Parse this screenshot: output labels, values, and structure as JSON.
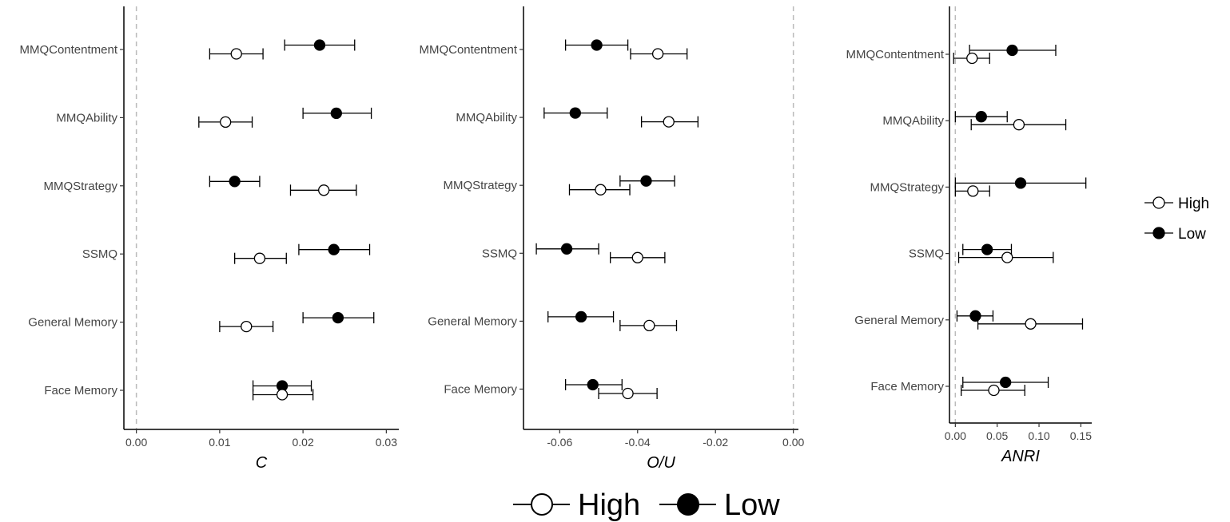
{
  "colors": {
    "high_fill": "#ffffff",
    "low_fill": "#000000",
    "stroke": "#000000",
    "reference_line": "#bbbbbb"
  },
  "legends": [
    {
      "placement": "right",
      "entries": [
        "High",
        "Low"
      ]
    },
    {
      "placement": "bottom",
      "entries": [
        "High",
        "Low"
      ]
    }
  ],
  "chart_data": [
    {
      "type": "scatter",
      "orientation": "horizontal",
      "xlabel": "C",
      "xlim": [
        -0.0015,
        0.0315
      ],
      "xticks": [
        0.0,
        0.01,
        0.02,
        0.03
      ],
      "xtick_labels": [
        "0.00",
        "0.01",
        "0.02",
        "0.03"
      ],
      "reference_line_x": 0,
      "grid": false,
      "categories": [
        "MMQContentment",
        "MMQAbility",
        "MMQStrategy",
        "SSMQ",
        "General Memory",
        "Face Memory"
      ],
      "series": [
        {
          "name": "High",
          "values": [
            0.012,
            0.0107,
            0.0225,
            0.0148,
            0.0132,
            0.0175
          ],
          "lower": [
            0.0088,
            0.0075,
            0.0185,
            0.0118,
            0.01,
            0.014
          ],
          "upper": [
            0.0152,
            0.0139,
            0.0264,
            0.018,
            0.0164,
            0.0212
          ]
        },
        {
          "name": "Low",
          "values": [
            0.022,
            0.024,
            0.0118,
            0.0237,
            0.0242,
            0.0175
          ],
          "lower": [
            0.0178,
            0.02,
            0.0088,
            0.0195,
            0.02,
            0.014
          ],
          "upper": [
            0.0262,
            0.0282,
            0.0148,
            0.028,
            0.0285,
            0.021
          ]
        }
      ]
    },
    {
      "type": "scatter",
      "orientation": "horizontal",
      "xlabel": "O/U",
      "xlim": [
        -0.0693,
        0.0013
      ],
      "xticks": [
        -0.06,
        -0.04,
        -0.02,
        0.0
      ],
      "xtick_labels": [
        "-0.06",
        "-0.04",
        "-0.02",
        "0.00"
      ],
      "reference_line_x": 0,
      "grid": false,
      "categories": [
        "MMQContentment",
        "MMQAbility",
        "MMQStrategy",
        "SSMQ",
        "General Memory",
        "Face Memory"
      ],
      "series": [
        {
          "name": "High",
          "values": [
            -0.0348,
            -0.032,
            -0.0495,
            -0.04,
            -0.037,
            -0.0425
          ],
          "lower": [
            -0.0418,
            -0.039,
            -0.0575,
            -0.047,
            -0.0445,
            -0.05
          ],
          "upper": [
            -0.0273,
            -0.0245,
            -0.042,
            -0.033,
            -0.03,
            -0.035
          ]
        },
        {
          "name": "Low",
          "values": [
            -0.0505,
            -0.056,
            -0.0378,
            -0.0582,
            -0.0545,
            -0.0515
          ],
          "lower": [
            -0.0585,
            -0.064,
            -0.0445,
            -0.066,
            -0.063,
            -0.0585
          ],
          "upper": [
            -0.0425,
            -0.0478,
            -0.0305,
            -0.05,
            -0.0462,
            -0.044
          ]
        }
      ]
    },
    {
      "type": "scatter",
      "orientation": "horizontal",
      "xlabel": "ANRI",
      "xlim": [
        -0.007,
        0.163
      ],
      "xticks": [
        0.0,
        0.05,
        0.1,
        0.15
      ],
      "xtick_labels": [
        "0.00",
        "0.05",
        "0.10",
        "0.15"
      ],
      "reference_line_x": 0,
      "grid": false,
      "categories": [
        "MMQContentment",
        "MMQAbility",
        "MMQStrategy",
        "SSMQ",
        "General Memory",
        "Face Memory"
      ],
      "series": [
        {
          "name": "High",
          "values": [
            0.02,
            0.076,
            0.021,
            0.062,
            0.09,
            0.046
          ],
          "lower": [
            -0.002,
            0.019,
            0.0,
            0.004,
            0.027,
            0.007
          ],
          "upper": [
            0.041,
            0.132,
            0.041,
            0.117,
            0.152,
            0.083
          ]
        },
        {
          "name": "Low",
          "values": [
            0.068,
            0.031,
            0.078,
            0.038,
            0.024,
            0.06
          ],
          "lower": [
            0.017,
            0.0,
            0.0,
            0.009,
            0.002,
            0.009
          ],
          "upper": [
            0.12,
            0.062,
            0.156,
            0.067,
            0.045,
            0.111
          ]
        }
      ]
    }
  ]
}
